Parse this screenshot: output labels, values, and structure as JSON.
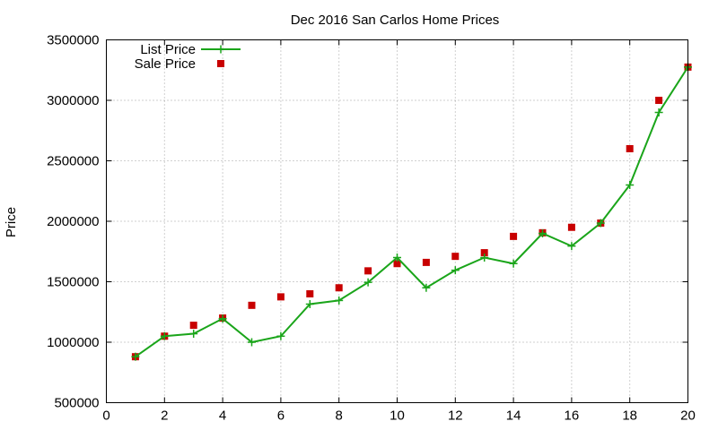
{
  "chart_data": {
    "type": "line",
    "title": "Dec 2016 San Carlos Home Prices",
    "xlabel": "",
    "ylabel": "Price",
    "xlim": [
      0,
      20
    ],
    "ylim": [
      500000,
      3500000
    ],
    "x_ticks": [
      0,
      2,
      4,
      6,
      8,
      10,
      12,
      14,
      16,
      18,
      20
    ],
    "y_ticks": [
      500000,
      1000000,
      1500000,
      2000000,
      2500000,
      3000000,
      3500000
    ],
    "grid": true,
    "legend_position": "top-left",
    "series": [
      {
        "name": "List Price",
        "style": "line-points",
        "marker": "plus",
        "color": "#1aa51a",
        "x": [
          1,
          2,
          3,
          4,
          5,
          6,
          7,
          8,
          9,
          10,
          11,
          12,
          13,
          14,
          15,
          16,
          17,
          18,
          19,
          20
        ],
        "y": [
          880000,
          1050000,
          1070000,
          1195000,
          1000000,
          1050000,
          1315000,
          1345000,
          1495000,
          1700000,
          1450000,
          1595000,
          1700000,
          1650000,
          1900000,
          1795000,
          1985000,
          2300000,
          2900000,
          3275000
        ]
      },
      {
        "name": "Sale Price",
        "style": "points",
        "marker": "square",
        "color": "#c80000",
        "x": [
          1,
          2,
          3,
          4,
          5,
          6,
          7,
          8,
          9,
          10,
          11,
          12,
          13,
          14,
          15,
          16,
          17,
          18,
          19,
          20
        ],
        "y": [
          880000,
          1050000,
          1140000,
          1200000,
          1305000,
          1375000,
          1400000,
          1450000,
          1590000,
          1650000,
          1660000,
          1710000,
          1740000,
          1875000,
          1905000,
          1950000,
          1985000,
          2600000,
          3000000,
          3275000
        ]
      }
    ]
  }
}
